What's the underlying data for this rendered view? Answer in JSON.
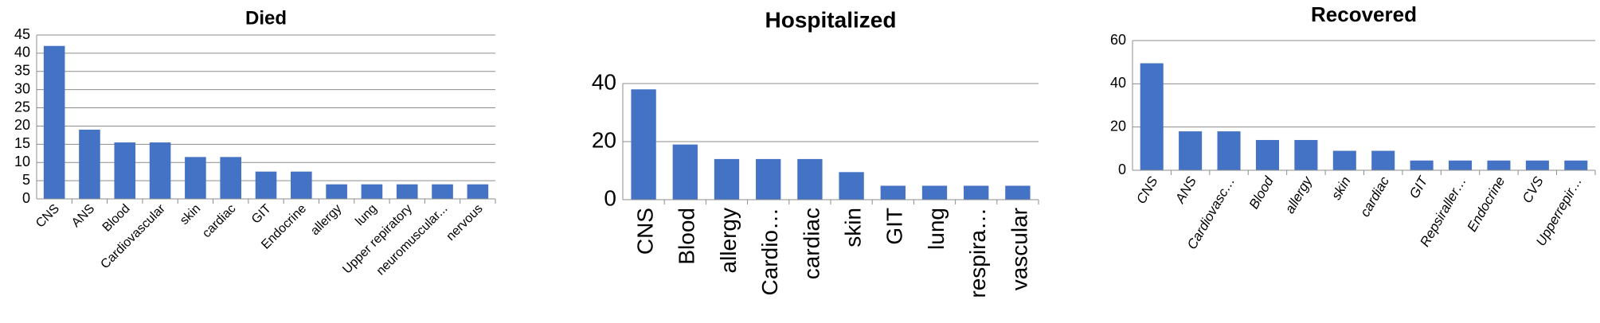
{
  "chart_data": [
    {
      "type": "bar",
      "title": "Died",
      "categories": [
        "CNS",
        "ANS",
        "Blood",
        "Cardiovascular",
        "skin",
        "cardiac",
        "GIT",
        "Endocrine",
        "allergy",
        "lung",
        "Upper repiratory",
        "neuromuscular...",
        "nervous"
      ],
      "values": [
        42,
        19,
        15.5,
        15.5,
        11.5,
        11.5,
        7.5,
        7.5,
        4,
        4,
        4,
        4,
        4
      ],
      "color": "#4472c4",
      "ylim": [
        0,
        45
      ],
      "yticks": [
        0,
        5,
        10,
        15,
        20,
        25,
        30,
        35,
        40,
        45
      ],
      "grid": true
    },
    {
      "type": "bar",
      "title": "Hospitalized",
      "categories": [
        "CNS",
        "Blood",
        "allergy",
        "Cardio…",
        "cardiac",
        "skin",
        "GIT",
        "lung",
        "respira…",
        "vascular"
      ],
      "values": [
        38,
        19,
        14,
        14,
        14,
        9.5,
        4.8,
        4.8,
        4.8,
        4.8
      ],
      "color": "#4472c4",
      "ylim": [
        0,
        40
      ],
      "yticks": [
        0,
        20,
        40
      ],
      "grid": true
    },
    {
      "type": "bar",
      "title": "Recovered",
      "categories": [
        "CNS",
        "ANS",
        "Cardiovasc…",
        "Blood",
        "allergy",
        "skin",
        "cardiac",
        "GIT",
        "Repsiraller…",
        "Endocrine",
        "CVS",
        "Upperrepir…"
      ],
      "values": [
        49.5,
        18,
        18,
        14,
        14,
        9,
        9,
        4.5,
        4.5,
        4.5,
        4.5,
        4.5
      ],
      "color": "#4472c4",
      "ylim": [
        0,
        60
      ],
      "yticks": [
        0,
        20,
        40,
        60
      ],
      "grid": true
    }
  ]
}
